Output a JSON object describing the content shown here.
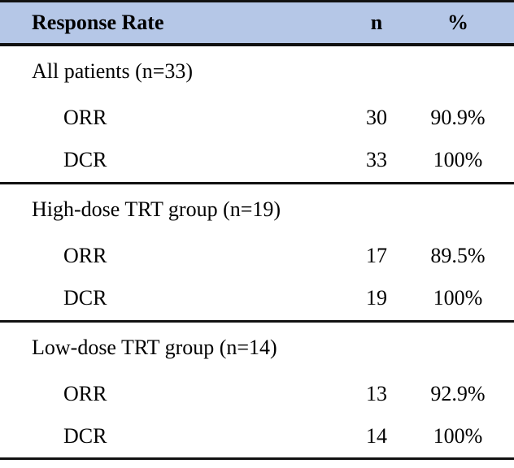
{
  "colors": {
    "header_bg": "#b5c7e7",
    "border": "#111111",
    "text": "#000000"
  },
  "chart_data": {
    "type": "table",
    "title": "Response Rate",
    "columns": [
      "Response Rate",
      "n",
      "%"
    ],
    "sections": [
      {
        "title": "All patients (n=33)",
        "rows": [
          {
            "label": "ORR",
            "n": "30",
            "pct": "90.9%"
          },
          {
            "label": "DCR",
            "n": "33",
            "pct": "100%"
          }
        ]
      },
      {
        "title": "High-dose TRT group (n=19)",
        "rows": [
          {
            "label": "ORR",
            "n": "17",
            "pct": "89.5%"
          },
          {
            "label": "DCR",
            "n": "19",
            "pct": "100%"
          }
        ]
      },
      {
        "title": "Low-dose TRT group (n=14)",
        "rows": [
          {
            "label": "ORR",
            "n": "13",
            "pct": "92.9%"
          },
          {
            "label": "DCR",
            "n": "14",
            "pct": "100%"
          }
        ]
      }
    ]
  }
}
